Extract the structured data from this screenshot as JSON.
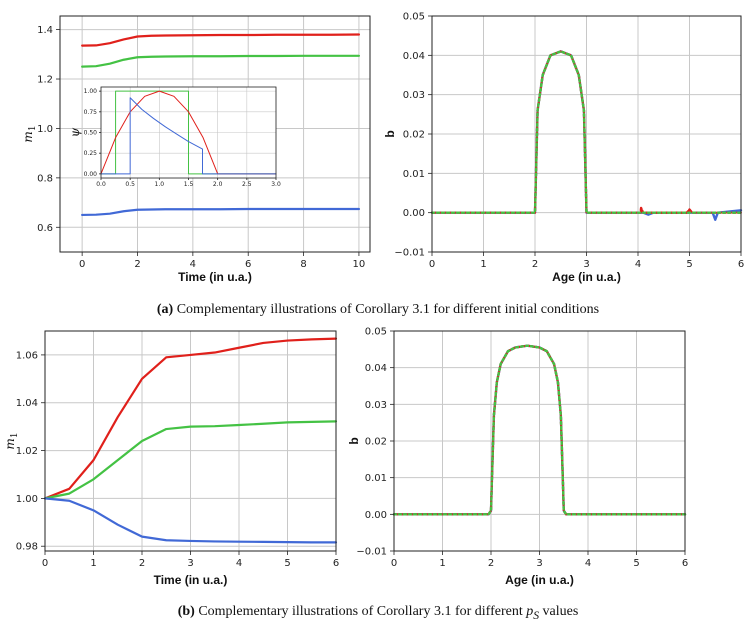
{
  "colors": {
    "red": "#e0201b",
    "green": "#44c244",
    "blue": "#4169d6",
    "grid": "#c8c8c8"
  },
  "captions": {
    "a_label": "(a)",
    "a_text": "Complementary illustrations of Corollary 3.1 for different initial conditions",
    "b_label": "(b)",
    "b_text_pre": "Complementary illustrations of Corollary 3.1 for different ",
    "b_symbol": "p",
    "b_sub": "S",
    "b_text_post": " values"
  },
  "chart_data": [
    {
      "id": "a1",
      "type": "line",
      "xlabel": "Time (in u.a.)",
      "ylabel": "m",
      "ylabel_sub": "1",
      "xlim": [
        -0.8,
        10.4
      ],
      "ylim": [
        0.5,
        1.455
      ],
      "xticks": [
        "0",
        "2",
        "4",
        "6",
        "8",
        "10"
      ],
      "xtick_values": [
        0,
        2,
        4,
        6,
        8,
        10
      ],
      "yticks": [
        "0.6",
        "0.8",
        "1.0",
        "1.2",
        "1.4"
      ],
      "ytick_values": [
        0.6,
        0.8,
        1.0,
        1.2,
        1.4
      ],
      "series": [
        {
          "name": "red",
          "x": [
            0,
            0.5,
            1,
            1.5,
            2,
            2.5,
            3,
            4,
            5,
            6,
            7,
            8,
            9,
            10
          ],
          "y": [
            1.335,
            1.336,
            1.345,
            1.36,
            1.372,
            1.375,
            1.376,
            1.377,
            1.378,
            1.378,
            1.379,
            1.379,
            1.379,
            1.38
          ]
        },
        {
          "name": "green",
          "x": [
            0,
            0.5,
            1,
            1.5,
            2,
            2.5,
            3,
            4,
            5,
            6,
            7,
            8,
            9,
            10
          ],
          "y": [
            1.25,
            1.252,
            1.262,
            1.278,
            1.288,
            1.29,
            1.291,
            1.292,
            1.292,
            1.293,
            1.293,
            1.294,
            1.294,
            1.294
          ]
        },
        {
          "name": "blue",
          "x": [
            0,
            0.5,
            1,
            1.5,
            2,
            2.5,
            3,
            4,
            5,
            6,
            7,
            8,
            9,
            10
          ],
          "y": [
            0.65,
            0.651,
            0.655,
            0.665,
            0.671,
            0.672,
            0.673,
            0.673,
            0.673,
            0.674,
            0.674,
            0.674,
            0.674,
            0.674
          ]
        }
      ]
    },
    {
      "id": "inset",
      "type": "line",
      "xlabel": "",
      "ylabel": "ψ",
      "xlim": [
        0,
        3
      ],
      "ylim": [
        -0.05,
        1.05
      ],
      "xticks": [
        "0.0",
        "0.5",
        "1.0",
        "1.5",
        "2.0",
        "2.5",
        "3.0"
      ],
      "xtick_values": [
        0,
        0.5,
        1,
        1.5,
        2,
        2.5,
        3
      ],
      "yticks": [
        "0.00",
        "0.25",
        "0.50",
        "0.75",
        "1.00"
      ],
      "ytick_values": [
        0,
        0.25,
        0.5,
        0.75,
        1
      ],
      "series": [
        {
          "name": "green",
          "x": [
            0,
            0.25,
            0.25,
            1.5,
            1.5,
            3
          ],
          "y": [
            0,
            0,
            1,
            1,
            0,
            0
          ]
        },
        {
          "name": "red",
          "x": [
            0,
            0.25,
            0.5,
            0.75,
            1,
            1.25,
            1.5,
            1.75,
            2,
            2.25,
            3
          ],
          "y": [
            0,
            0.4375,
            0.75,
            0.9375,
            1,
            0.9375,
            0.75,
            0.4375,
            0,
            0,
            0
          ]
        },
        {
          "name": "blue",
          "x": [
            0,
            0.5,
            0.5,
            0.7,
            0.9,
            1.1,
            1.3,
            1.5,
            1.74,
            1.74,
            3
          ],
          "y": [
            0,
            0,
            0.92,
            0.78,
            0.67,
            0.57,
            0.48,
            0.39,
            0.3,
            0,
            0
          ]
        }
      ]
    },
    {
      "id": "a2",
      "type": "line",
      "xlabel": "Age (in u.a.)",
      "ylabel": "b",
      "xlim": [
        0,
        6
      ],
      "ylim": [
        -0.01,
        0.05
      ],
      "xticks": [
        "0",
        "1",
        "2",
        "3",
        "4",
        "5",
        "6"
      ],
      "xtick_values": [
        0,
        1,
        2,
        3,
        4,
        5,
        6
      ],
      "yticks": [
        "−0.01",
        "0.00",
        "0.01",
        "0.02",
        "0.03",
        "0.04",
        "0.05"
      ],
      "ytick_values": [
        -0.01,
        0,
        0.01,
        0.02,
        0.03,
        0.04,
        0.05
      ],
      "series": [
        {
          "name": "blue",
          "x": [
            0,
            2,
            2,
            2.05,
            2.15,
            2.3,
            2.5,
            2.7,
            2.85,
            2.95,
            3,
            3,
            4.1,
            4.2,
            4.3,
            5,
            5.45,
            5.5,
            5.55,
            6
          ],
          "y": [
            0,
            0,
            0,
            0.026,
            0.035,
            0.04,
            0.041,
            0.04,
            0.035,
            0.026,
            0,
            0,
            0,
            -0.0005,
            0,
            0,
            0,
            -0.0018,
            0,
            0.0006
          ]
        },
        {
          "name": "red",
          "x": [
            0,
            2,
            2,
            2.05,
            2.15,
            2.3,
            2.5,
            2.7,
            2.85,
            2.95,
            3,
            3,
            4.05,
            4.06,
            4.1,
            4.95,
            5,
            5.05,
            6
          ],
          "y": [
            0,
            0,
            0,
            0.026,
            0.035,
            0.04,
            0.041,
            0.04,
            0.035,
            0.026,
            0,
            0,
            0,
            0.0012,
            0,
            0,
            0.0008,
            0,
            0
          ]
        },
        {
          "name": "green",
          "x": [
            0,
            2,
            2,
            2.05,
            2.15,
            2.3,
            2.5,
            2.7,
            2.85,
            2.95,
            3,
            3,
            6
          ],
          "y": [
            0,
            0,
            0,
            0.026,
            0.035,
            0.04,
            0.041,
            0.04,
            0.035,
            0.026,
            0,
            0,
            0
          ]
        }
      ]
    },
    {
      "id": "b1",
      "type": "line",
      "xlabel": "Time (in u.a.)",
      "ylabel": "m",
      "ylabel_sub": "1",
      "xlim": [
        0,
        6
      ],
      "ylim": [
        0.978,
        1.07
      ],
      "xticks": [
        "0",
        "1",
        "2",
        "3",
        "4",
        "5",
        "6"
      ],
      "xtick_values": [
        0,
        1,
        2,
        3,
        4,
        5,
        6
      ],
      "yticks": [
        "0.98",
        "1.00",
        "1.02",
        "1.04",
        "1.06"
      ],
      "ytick_values": [
        0.98,
        1.0,
        1.02,
        1.04,
        1.06
      ],
      "series": [
        {
          "name": "red",
          "x": [
            0,
            0.5,
            1,
            1.5,
            2,
            2.5,
            3,
            3.5,
            4,
            4.5,
            5,
            5.5,
            6
          ],
          "y": [
            1.0,
            1.004,
            1.016,
            1.034,
            1.05,
            1.059,
            1.06,
            1.061,
            1.063,
            1.065,
            1.066,
            1.0665,
            1.0668
          ]
        },
        {
          "name": "green",
          "x": [
            0,
            0.5,
            1,
            1.5,
            2,
            2.5,
            3,
            3.5,
            4,
            4.5,
            5,
            5.5,
            6
          ],
          "y": [
            1.0,
            1.002,
            1.008,
            1.016,
            1.024,
            1.029,
            1.03,
            1.0302,
            1.0307,
            1.0312,
            1.0318,
            1.032,
            1.0322
          ]
        },
        {
          "name": "blue",
          "x": [
            0,
            0.5,
            1,
            1.5,
            2,
            2.5,
            3,
            3.5,
            4,
            4.5,
            5,
            5.5,
            6
          ],
          "y": [
            1.0,
            0.999,
            0.995,
            0.989,
            0.984,
            0.9825,
            0.9822,
            0.982,
            0.9819,
            0.9818,
            0.9817,
            0.9816,
            0.9816
          ]
        }
      ]
    },
    {
      "id": "b2",
      "type": "line",
      "xlabel": "Age (in u.a.)",
      "ylabel": "b",
      "xlim": [
        0,
        6
      ],
      "ylim": [
        -0.01,
        0.05
      ],
      "xticks": [
        "0",
        "1",
        "2",
        "3",
        "4",
        "5",
        "6"
      ],
      "xtick_values": [
        0,
        1,
        2,
        3,
        4,
        5,
        6
      ],
      "yticks": [
        "−0.01",
        "0.00",
        "0.01",
        "0.02",
        "0.03",
        "0.04",
        "0.05"
      ],
      "ytick_values": [
        -0.01,
        0,
        0.01,
        0.02,
        0.03,
        0.04,
        0.05
      ],
      "series": [
        {
          "name": "blue",
          "x": [
            0,
            1.95,
            2,
            2.02,
            2.06,
            2.12,
            2.2,
            2.35,
            2.5,
            2.75,
            3,
            3.15,
            3.3,
            3.38,
            3.44,
            3.48,
            3.5,
            3.55,
            6
          ],
          "y": [
            0,
            0,
            0.001,
            0.01,
            0.027,
            0.036,
            0.041,
            0.0445,
            0.0455,
            0.046,
            0.0455,
            0.0445,
            0.041,
            0.036,
            0.027,
            0.01,
            0.001,
            0,
            0
          ]
        },
        {
          "name": "red",
          "x": [
            0,
            1.95,
            2,
            2.02,
            2.06,
            2.12,
            2.2,
            2.35,
            2.5,
            2.75,
            3,
            3.15,
            3.3,
            3.38,
            3.44,
            3.48,
            3.5,
            3.55,
            6
          ],
          "y": [
            0,
            0,
            0.001,
            0.01,
            0.027,
            0.036,
            0.041,
            0.0445,
            0.0455,
            0.046,
            0.0455,
            0.0445,
            0.041,
            0.036,
            0.027,
            0.01,
            0.001,
            0,
            0
          ]
        },
        {
          "name": "green",
          "x": [
            0,
            1.95,
            2,
            2.02,
            2.06,
            2.12,
            2.2,
            2.35,
            2.5,
            2.75,
            3,
            3.15,
            3.3,
            3.38,
            3.44,
            3.48,
            3.5,
            3.55,
            6
          ],
          "y": [
            0,
            0,
            0.001,
            0.01,
            0.027,
            0.036,
            0.041,
            0.0445,
            0.0455,
            0.046,
            0.0455,
            0.0445,
            0.041,
            0.036,
            0.027,
            0.01,
            0.001,
            0,
            0
          ]
        }
      ]
    }
  ]
}
